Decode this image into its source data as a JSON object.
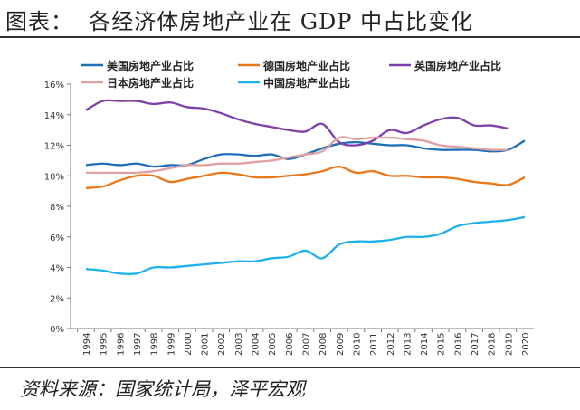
{
  "title": "图表：  各经济体房地产业在 GDP 中占比变化",
  "source": "资料来源：国家统计局，泽平宏观",
  "chart_data": {
    "type": "line",
    "title": "图表：  各经济体房地产业在 GDP 中占比变化",
    "x": [
      1994,
      1995,
      1996,
      1997,
      1998,
      1999,
      2000,
      2001,
      2002,
      2003,
      2004,
      2005,
      2006,
      2007,
      2008,
      2009,
      2010,
      2011,
      2012,
      2013,
      2014,
      2015,
      2016,
      2017,
      2018,
      2019,
      2020
    ],
    "ylim": [
      0,
      16
    ],
    "yticks": [
      "0%",
      "2%",
      "4%",
      "6%",
      "8%",
      "10%",
      "12%",
      "14%",
      "16%"
    ],
    "grid": false,
    "legend": "top",
    "series": [
      {
        "name": "美国房地产业占比",
        "color": "#1f6fb8",
        "values": [
          10.7,
          10.8,
          10.7,
          10.8,
          10.6,
          10.7,
          10.7,
          11.1,
          11.4,
          11.4,
          11.3,
          11.4,
          11.1,
          11.4,
          11.8,
          12.1,
          12.2,
          12.1,
          12.0,
          12.0,
          11.8,
          11.7,
          11.7,
          11.7,
          11.6,
          11.7,
          12.3
        ]
      },
      {
        "name": "德国房地产业占比",
        "color": "#e8771c",
        "values": [
          9.2,
          9.3,
          9.7,
          10.0,
          10.0,
          9.6,
          9.8,
          10.0,
          10.2,
          10.1,
          9.9,
          9.9,
          10.0,
          10.1,
          10.3,
          10.6,
          10.2,
          10.3,
          10.0,
          10.0,
          9.9,
          9.9,
          9.8,
          9.6,
          9.5,
          9.4,
          9.9
        ]
      },
      {
        "name": "英国房地产业占比",
        "color": "#7d3fa8",
        "values": [
          14.3,
          14.9,
          14.9,
          14.9,
          14.7,
          14.8,
          14.5,
          14.4,
          14.1,
          13.7,
          13.4,
          13.2,
          13.0,
          12.9,
          13.4,
          12.2,
          12.0,
          12.3,
          13.0,
          12.8,
          13.3,
          13.7,
          13.8,
          13.3,
          13.3,
          13.1,
          null
        ]
      },
      {
        "name": "日本房地产业占比",
        "color": "#e0a0a0",
        "values": [
          10.2,
          10.2,
          10.2,
          10.2,
          10.3,
          10.5,
          10.7,
          10.7,
          10.8,
          10.8,
          10.9,
          11.0,
          11.2,
          11.4,
          11.6,
          12.5,
          12.4,
          12.5,
          12.5,
          12.4,
          12.3,
          12.0,
          11.9,
          11.8,
          11.7,
          11.7,
          null
        ]
      },
      {
        "name": "中国房地产业占比",
        "color": "#1eb0ec",
        "values": [
          3.9,
          3.8,
          3.6,
          3.6,
          4.0,
          4.0,
          4.1,
          4.2,
          4.3,
          4.4,
          4.4,
          4.6,
          4.7,
          5.1,
          4.6,
          5.5,
          5.7,
          5.7,
          5.8,
          6.0,
          6.0,
          6.2,
          6.7,
          6.9,
          7.0,
          7.1,
          7.3
        ]
      }
    ]
  }
}
